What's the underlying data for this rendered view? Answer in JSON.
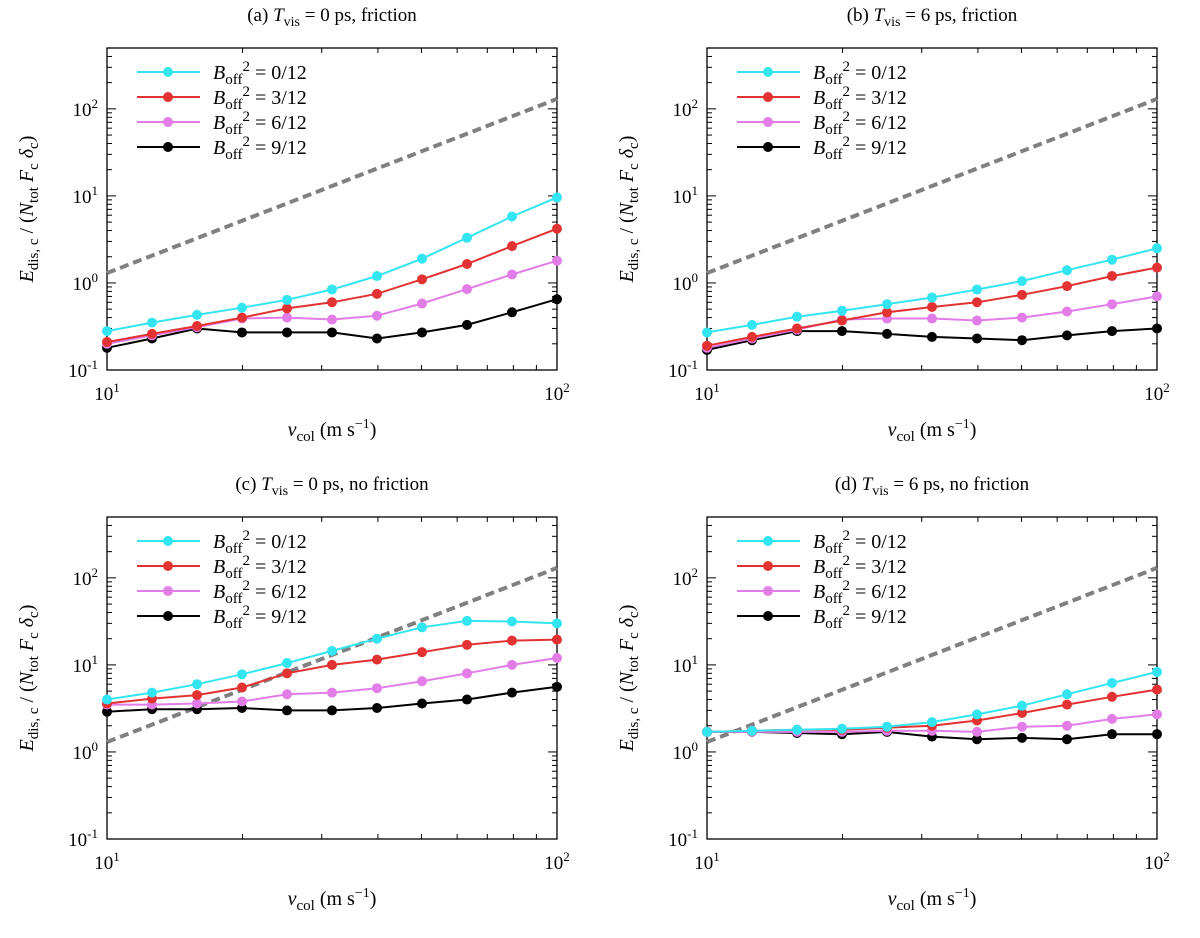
{
  "chart_data": [
    {
      "type": "line",
      "title": {
        "prefix": "(a)",
        "T": "T",
        "Tsub": "vis",
        "rest": "= 0 ps, friction"
      },
      "xscale": "log",
      "yscale": "log",
      "xlim": [
        10,
        100
      ],
      "ylim": [
        0.1,
        500
      ],
      "xticks": [
        10,
        100
      ],
      "yticks": [
        0.1,
        1,
        10,
        100
      ],
      "x": [
        10,
        12.59,
        15.85,
        19.95,
        25.12,
        31.62,
        39.81,
        50.12,
        63.1,
        79.43,
        100
      ],
      "series": [
        {
          "name": "B_off^2 = 0/12",
          "color": "#33e5f0",
          "values": [
            0.28,
            0.35,
            0.43,
            0.52,
            0.64,
            0.84,
            1.2,
            1.9,
            3.3,
            5.8,
            9.6
          ]
        },
        {
          "name": "B_off^2 = 3/12",
          "color": "#e33232",
          "values": [
            0.21,
            0.26,
            0.32,
            0.4,
            0.51,
            0.6,
            0.75,
            1.1,
            1.65,
            2.65,
            4.2
          ]
        },
        {
          "name": "B_off^2 = 6/12",
          "color": "#e27de8",
          "values": [
            0.2,
            0.25,
            0.31,
            0.39,
            0.4,
            0.38,
            0.42,
            0.58,
            0.85,
            1.25,
            1.8
          ]
        },
        {
          "name": "B_off^2 = 9/12",
          "color": "#000000",
          "values": [
            0.18,
            0.23,
            0.3,
            0.27,
            0.27,
            0.27,
            0.23,
            0.27,
            0.33,
            0.46,
            0.65
          ]
        }
      ],
      "reference_line": {
        "style": "dashed",
        "color": "#808080",
        "x": [
          10,
          100
        ],
        "y": [
          1.3,
          130
        ]
      }
    },
    {
      "type": "line",
      "title": {
        "prefix": "(b)",
        "T": "T",
        "Tsub": "vis",
        "rest": "= 6 ps, friction"
      },
      "xscale": "log",
      "yscale": "log",
      "xlim": [
        10,
        100
      ],
      "ylim": [
        0.1,
        500
      ],
      "xticks": [
        10,
        100
      ],
      "yticks": [
        0.1,
        1,
        10,
        100
      ],
      "x": [
        10,
        12.59,
        15.85,
        19.95,
        25.12,
        31.62,
        39.81,
        50.12,
        63.1,
        79.43,
        100
      ],
      "series": [
        {
          "name": "B_off^2 = 0/12",
          "color": "#33e5f0",
          "values": [
            0.27,
            0.33,
            0.41,
            0.48,
            0.57,
            0.68,
            0.84,
            1.05,
            1.4,
            1.85,
            2.5
          ]
        },
        {
          "name": "B_off^2 = 3/12",
          "color": "#e33232",
          "values": [
            0.19,
            0.24,
            0.3,
            0.37,
            0.46,
            0.53,
            0.6,
            0.73,
            0.92,
            1.2,
            1.5
          ]
        },
        {
          "name": "B_off^2 = 6/12",
          "color": "#e27de8",
          "values": [
            0.18,
            0.23,
            0.29,
            0.38,
            0.39,
            0.39,
            0.37,
            0.4,
            0.47,
            0.57,
            0.7
          ]
        },
        {
          "name": "B_off^2 = 9/12",
          "color": "#000000",
          "values": [
            0.17,
            0.22,
            0.28,
            0.28,
            0.26,
            0.24,
            0.23,
            0.22,
            0.25,
            0.28,
            0.3
          ]
        }
      ],
      "reference_line": {
        "style": "dashed",
        "color": "#808080",
        "x": [
          10,
          100
        ],
        "y": [
          1.3,
          130
        ]
      }
    },
    {
      "type": "line",
      "title": {
        "prefix": "(c)",
        "T": "T",
        "Tsub": "vis",
        "rest": "= 0 ps, no friction"
      },
      "xscale": "log",
      "yscale": "log",
      "xlim": [
        10,
        100
      ],
      "ylim": [
        0.1,
        500
      ],
      "xticks": [
        10,
        100
      ],
      "yticks": [
        0.1,
        1,
        10,
        100
      ],
      "x": [
        10,
        12.59,
        15.85,
        19.95,
        25.12,
        31.62,
        39.81,
        50.12,
        63.1,
        79.43,
        100
      ],
      "series": [
        {
          "name": "B_off^2 = 0/12",
          "color": "#33e5f0",
          "values": [
            4.0,
            4.8,
            6.0,
            7.8,
            10.5,
            14.5,
            20.0,
            27.0,
            32.0,
            31.5,
            30.0
          ]
        },
        {
          "name": "B_off^2 = 3/12",
          "color": "#e33232",
          "values": [
            3.6,
            4.1,
            4.5,
            5.5,
            8.0,
            10.0,
            11.5,
            14.0,
            17.0,
            19.0,
            19.5
          ]
        },
        {
          "name": "B_off^2 = 6/12",
          "color": "#e27de8",
          "values": [
            3.5,
            3.5,
            3.6,
            3.8,
            4.6,
            4.8,
            5.4,
            6.5,
            8.0,
            10.0,
            12.0
          ]
        },
        {
          "name": "B_off^2 = 9/12",
          "color": "#000000",
          "values": [
            2.9,
            3.1,
            3.1,
            3.2,
            3.0,
            3.0,
            3.2,
            3.6,
            4.0,
            4.8,
            5.6
          ]
        }
      ],
      "reference_line": {
        "style": "dashed",
        "color": "#808080",
        "x": [
          10,
          100
        ],
        "y": [
          1.3,
          130
        ]
      }
    },
    {
      "type": "line",
      "title": {
        "prefix": "(d)",
        "T": "T",
        "Tsub": "vis",
        "rest": "= 6 ps, no friction"
      },
      "xscale": "log",
      "yscale": "log",
      "xlim": [
        10,
        100
      ],
      "ylim": [
        0.1,
        500
      ],
      "xticks": [
        10,
        100
      ],
      "yticks": [
        0.1,
        1,
        10,
        100
      ],
      "x": [
        10,
        12.59,
        15.85,
        19.95,
        25.12,
        31.62,
        39.81,
        50.12,
        63.1,
        79.43,
        100
      ],
      "series": [
        {
          "name": "B_off^2 = 0/12",
          "color": "#33e5f0",
          "values": [
            1.7,
            1.75,
            1.8,
            1.85,
            1.95,
            2.2,
            2.7,
            3.4,
            4.6,
            6.2,
            8.3
          ]
        },
        {
          "name": "B_off^2 = 3/12",
          "color": "#e33232",
          "values": [
            1.7,
            1.75,
            1.8,
            1.8,
            1.9,
            2.0,
            2.3,
            2.8,
            3.5,
            4.3,
            5.2
          ]
        },
        {
          "name": "B_off^2 = 6/12",
          "color": "#e27de8",
          "values": [
            1.7,
            1.7,
            1.7,
            1.7,
            1.75,
            1.75,
            1.7,
            1.95,
            2.0,
            2.4,
            2.7
          ]
        },
        {
          "name": "B_off^2 = 9/12",
          "color": "#000000",
          "values": [
            1.7,
            1.7,
            1.65,
            1.6,
            1.7,
            1.5,
            1.4,
            1.45,
            1.4,
            1.6,
            1.6
          ]
        }
      ],
      "reference_line": {
        "style": "dashed",
        "color": "#808080",
        "x": [
          10,
          100
        ],
        "y": [
          1.3,
          130
        ]
      }
    }
  ],
  "labels": {
    "xlabel": {
      "v": "v",
      "sub": "col",
      "rest": " (m s",
      "exp": "−1",
      "close": ")"
    },
    "ylabel": {
      "E": "E",
      "Esub": "dis, c",
      "mid": " / (",
      "N": "N",
      "Nsub": "tot",
      "F": " F",
      "Fsub": "c",
      "d": " δ",
      "dsub": "c",
      "close": ")"
    },
    "legend": [
      {
        "B": "B",
        "sub": "off",
        "sup": "2",
        "eq": " = 0/12"
      },
      {
        "B": "B",
        "sub": "off",
        "sup": "2",
        "eq": " = 3/12"
      },
      {
        "B": "B",
        "sub": "off",
        "sup": "2",
        "eq": " = 6/12"
      },
      {
        "B": "B",
        "sub": "off",
        "sup": "2",
        "eq": " = 9/12"
      }
    ],
    "tick_exponents": {
      "0.1": "-1",
      "1": "0",
      "10": "1",
      "100": "2"
    }
  }
}
